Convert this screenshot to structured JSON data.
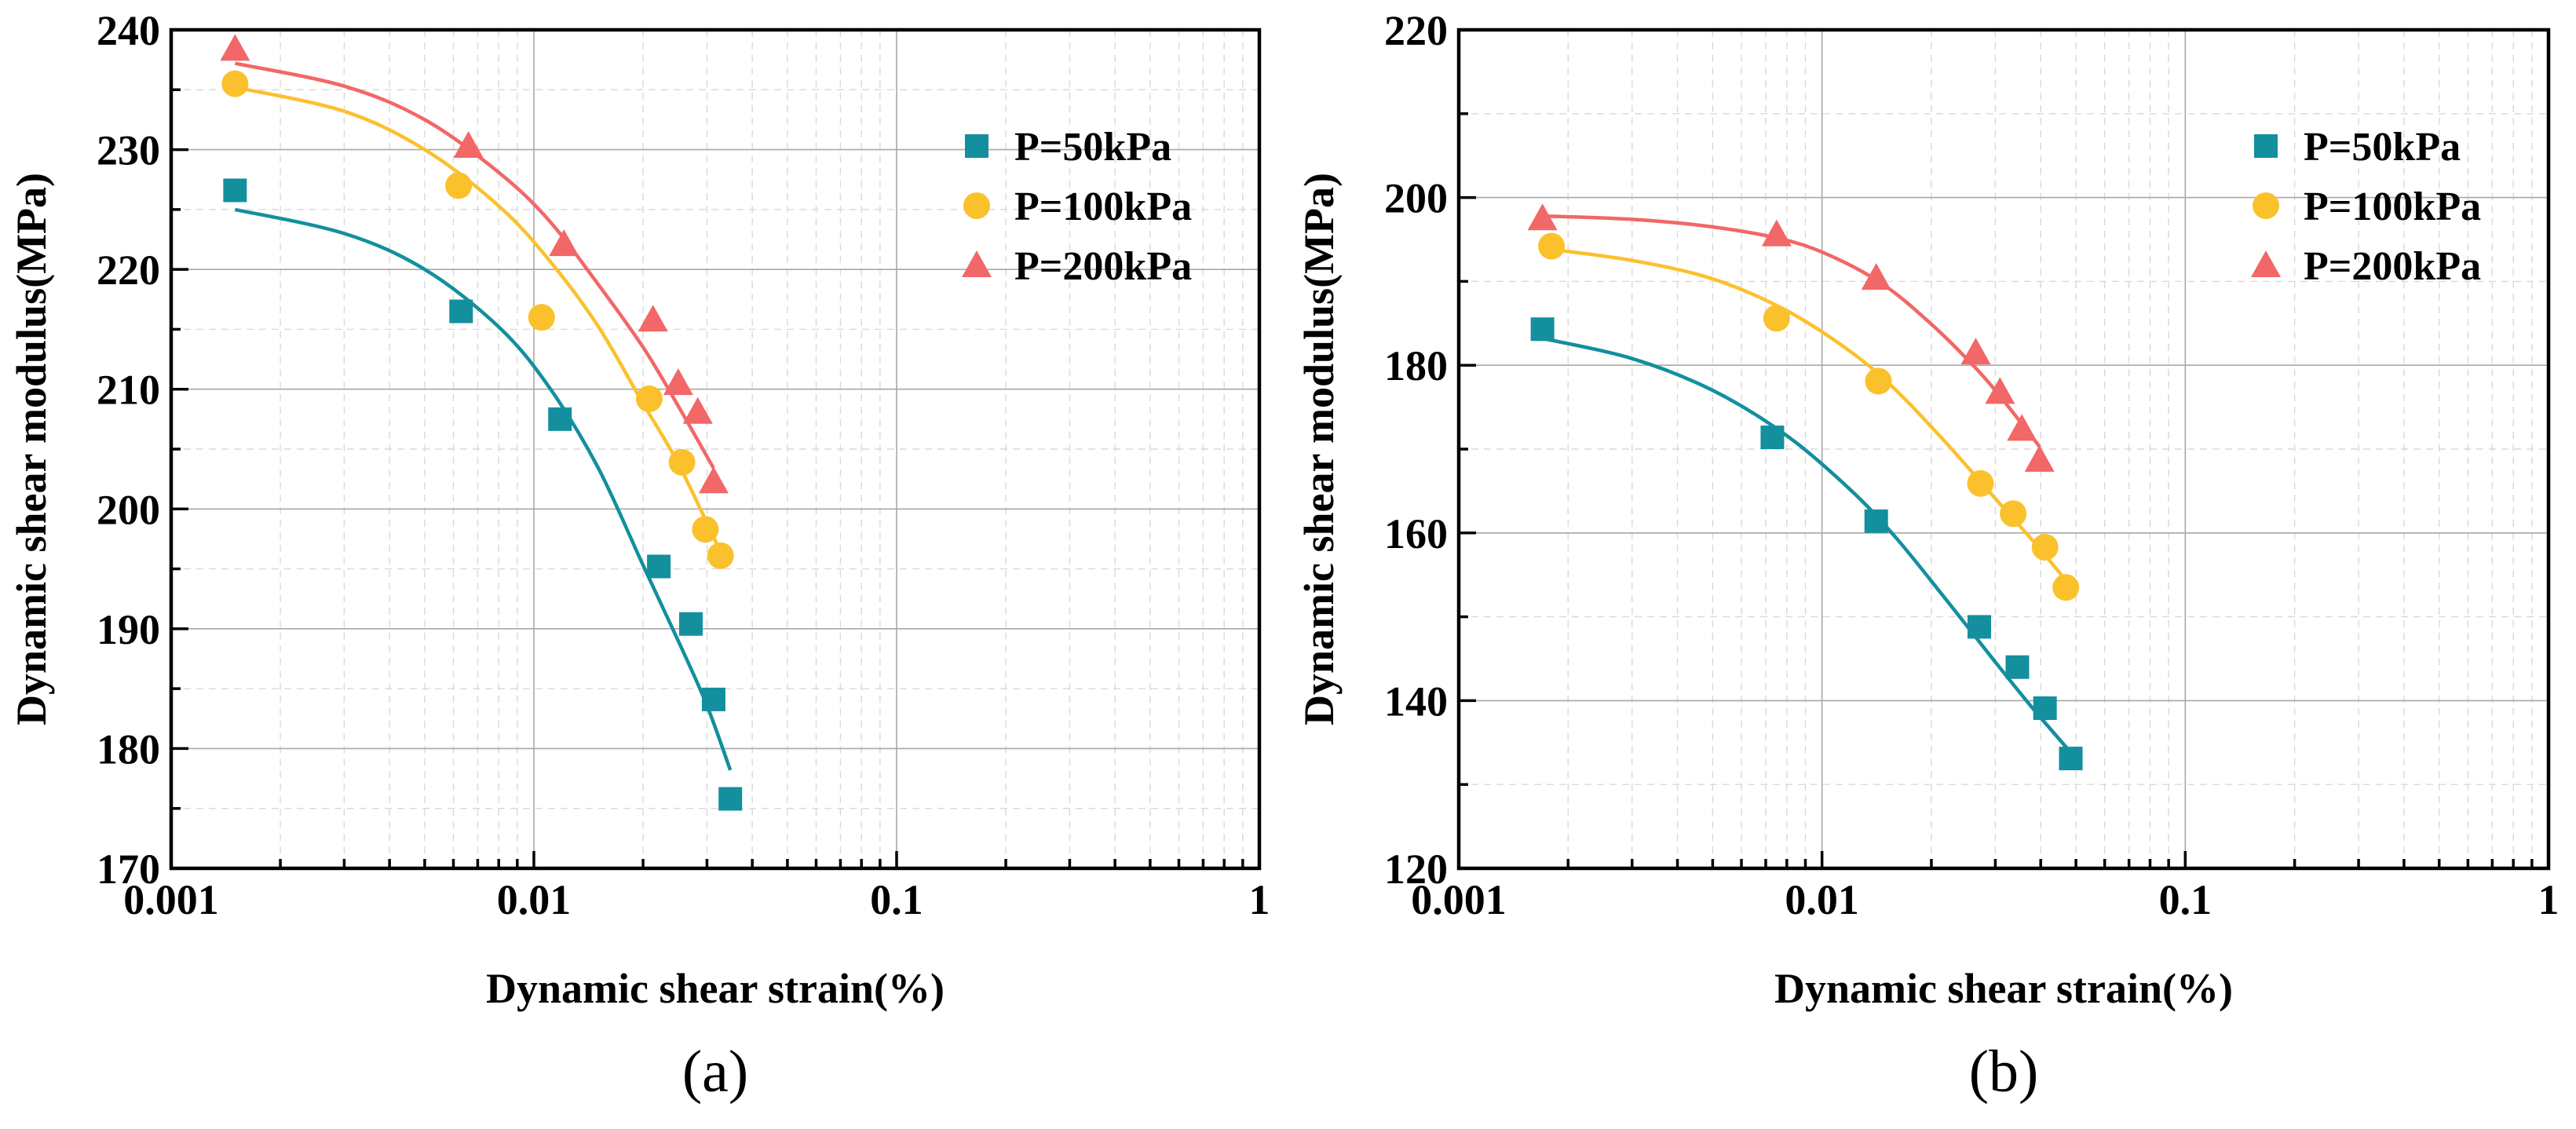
{
  "figure": {
    "panel_labels": [
      "(a)",
      "(b)"
    ]
  },
  "colors": {
    "P=50kPa": "#138f9e",
    "P=100kPa": "#fbc12d",
    "P=200kPa": "#f26767"
  },
  "chart_data": [
    {
      "type": "scatter",
      "panel": "(a)",
      "title": "",
      "xlabel": "Dynamic shear strain(%)",
      "ylabel": "Dynamic shear modulus(MPa)",
      "xscale": "log",
      "xlim": [
        0.001,
        1
      ],
      "ylim": [
        170,
        240
      ],
      "x_ticks": [
        0.001,
        0.01,
        0.1,
        1
      ],
      "x_tick_labels": [
        "0.001",
        "0.01",
        "0.1",
        "1"
      ],
      "y_ticks": [
        170,
        180,
        190,
        200,
        210,
        220,
        230,
        240
      ],
      "y_tick_labels": [
        "170",
        "180",
        "190",
        "200",
        "210",
        "220",
        "230",
        "240"
      ],
      "legend_position": "top-right",
      "series": [
        {
          "name": "P=50kPa",
          "marker": "square",
          "x": [
            0.0015,
            0.0063,
            0.0118,
            0.0221,
            0.0271,
            0.0313,
            0.0348
          ],
          "y": [
            226.6,
            216.5,
            207.5,
            195.2,
            190.4,
            184.1,
            175.8
          ],
          "fit": {
            "x": [
              0.0015,
              0.003,
              0.005,
              0.008,
              0.011,
              0.015,
              0.02,
              0.025,
              0.03,
              0.0348
            ],
            "y": [
              225.0,
              223.0,
              220.0,
              215.2,
              210.2,
              203.5,
              195.3,
              189.0,
              183.6,
              178.2
            ]
          }
        },
        {
          "name": "P=100kPa",
          "marker": "circle",
          "x": [
            0.0015,
            0.0062,
            0.0105,
            0.0208,
            0.0256,
            0.0297,
            0.0327
          ],
          "y": [
            235.5,
            227.0,
            216.0,
            209.2,
            203.9,
            198.3,
            196.1
          ],
          "fit": {
            "x": [
              0.0015,
              0.003,
              0.005,
              0.008,
              0.011,
              0.015,
              0.02,
              0.025,
              0.0325
            ],
            "y": [
              235.2,
              233.2,
              230.0,
              225.3,
              220.8,
              215.3,
              208.8,
              203.8,
              196.6
            ]
          }
        },
        {
          "name": "P=200kPa",
          "marker": "triangle",
          "x": [
            0.0015,
            0.0066,
            0.0121,
            0.0213,
            0.025,
            0.0283,
            0.0313
          ],
          "y": [
            238.4,
            230.3,
            222.1,
            215.8,
            210.5,
            208.1,
            202.3
          ],
          "fit": {
            "x": [
              0.0015,
              0.003,
              0.005,
              0.008,
              0.011,
              0.015,
              0.02,
              0.025,
              0.0313
            ],
            "y": [
              237.2,
              235.3,
              232.5,
              228.1,
              224.1,
              218.8,
              213.5,
              208.6,
              203.4
            ]
          }
        }
      ]
    },
    {
      "type": "scatter",
      "panel": "(b)",
      "title": "",
      "xlabel": "Dynamic shear strain(%)",
      "ylabel": "Dynamic shear modulus(MPa)",
      "xscale": "log",
      "xlim": [
        0.001,
        1
      ],
      "ylim": [
        120,
        220
      ],
      "x_ticks": [
        0.001,
        0.01,
        0.1,
        1
      ],
      "x_tick_labels": [
        "0.001",
        "0.01",
        "0.1",
        "1"
      ],
      "y_ticks": [
        120,
        140,
        160,
        180,
        200,
        220
      ],
      "y_tick_labels": [
        "120",
        "140",
        "160",
        "180",
        "200",
        "220"
      ],
      "legend_position": "top-right",
      "series": [
        {
          "name": "P=50kPa",
          "marker": "square",
          "x": [
            0.0017,
            0.0073,
            0.0141,
            0.0271,
            0.0345,
            0.0411,
            0.0484
          ],
          "y": [
            184.3,
            171.4,
            161.4,
            148.8,
            144.0,
            139.1,
            133.1
          ],
          "fit": {
            "x": [
              0.0017,
              0.003,
              0.005,
              0.008,
              0.012,
              0.016,
              0.022,
              0.03,
              0.038,
              0.048
            ],
            "y": [
              183.2,
              180.8,
              177.0,
              171.6,
              165.1,
              159.4,
              152.0,
              144.6,
              139.1,
              134.0
            ]
          }
        },
        {
          "name": "P=100kPa",
          "marker": "circle",
          "x": [
            0.0018,
            0.0075,
            0.0143,
            0.0273,
            0.0336,
            0.0411,
            0.0469
          ],
          "y": [
            194.2,
            185.6,
            178.1,
            165.9,
            162.3,
            158.3,
            153.5
          ],
          "fit": {
            "x": [
              0.0018,
              0.003,
              0.005,
              0.008,
              0.012,
              0.016,
              0.022,
              0.03,
              0.038,
              0.046
            ],
            "y": [
              193.8,
              192.5,
              190.3,
              186.5,
              181.6,
              177.0,
              170.7,
              164.1,
              159.1,
              154.8
            ]
          }
        },
        {
          "name": "P=200kPa",
          "marker": "triangle",
          "x": [
            0.0017,
            0.0075,
            0.0141,
            0.0265,
            0.0309,
            0.0355,
            0.0397
          ],
          "y": [
            197.5,
            195.6,
            190.4,
            181.5,
            176.8,
            172.4,
            168.7
          ],
          "fit": {
            "x": [
              0.0017,
              0.003,
              0.005,
              0.008,
              0.011,
              0.015,
              0.02,
              0.025,
              0.03,
              0.0397
            ],
            "y": [
              197.8,
              197.4,
              196.5,
              194.9,
              192.7,
              189.4,
              184.9,
              180.8,
              177.0,
              170.3
            ]
          }
        }
      ]
    }
  ]
}
